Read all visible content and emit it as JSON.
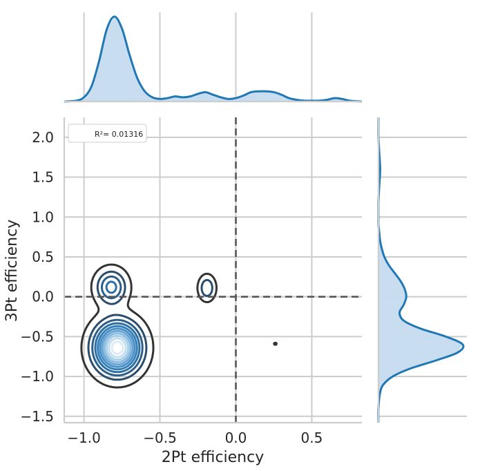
{
  "chart_data": {
    "type": "scatter",
    "subtype": "jointplot-kde",
    "xlabel": "2Pt efficiency",
    "ylabel": "3Pt efficiency",
    "xlim": [
      -1.13,
      0.83
    ],
    "ylim": [
      -1.58,
      2.25
    ],
    "xticks": [
      "−1.0",
      "−0.5",
      "0.0",
      "0.5"
    ],
    "xtick_values": [
      -1.0,
      -0.5,
      0.0,
      0.5
    ],
    "yticks": [
      "−1.5",
      "−1.0",
      "−0.5",
      "0.0",
      "0.5",
      "1.0",
      "1.5",
      "2.0"
    ],
    "ytick_values": [
      -1.5,
      -1.0,
      -0.5,
      0.0,
      0.5,
      1.0,
      1.5,
      2.0
    ],
    "grid": true,
    "legend": {
      "placement": "top-left",
      "entries": [
        "R²= 0.01316"
      ]
    },
    "reference_lines": {
      "x": 0.0,
      "y": 0.0,
      "style": "dashed"
    },
    "colors": {
      "marginal": "#1f77b4",
      "marginal_fill": "#c6dbef",
      "contour_outer": "#333333",
      "contour_inner": "#deebf7",
      "refline": "#555555"
    },
    "joint_kde": {
      "components": [
        {
          "cx": -0.78,
          "cy": -0.64,
          "sx": 0.095,
          "sy": 0.2,
          "w": 1.0
        },
        {
          "cx": -0.82,
          "cy": 0.12,
          "sx": 0.065,
          "sy": 0.14,
          "w": 0.35
        },
        {
          "cx": -0.19,
          "cy": 0.11,
          "sx": 0.035,
          "sy": 0.1,
          "w": 0.22
        },
        {
          "cx": 0.26,
          "cy": -0.59,
          "sx": 0.02,
          "sy": 0.03,
          "w": 0.05
        }
      ],
      "contour_levels": 11
    },
    "marginal_x": {
      "x": [
        -1.13,
        -1.05,
        -1.0,
        -0.95,
        -0.9,
        -0.85,
        -0.8,
        -0.75,
        -0.7,
        -0.65,
        -0.6,
        -0.55,
        -0.5,
        -0.45,
        -0.4,
        -0.35,
        -0.3,
        -0.25,
        -0.2,
        -0.15,
        -0.1,
        -0.05,
        0.0,
        0.05,
        0.1,
        0.15,
        0.2,
        0.25,
        0.3,
        0.35,
        0.4,
        0.45,
        0.5,
        0.55,
        0.6,
        0.65,
        0.7,
        0.75,
        0.83
      ],
      "density": [
        0.0,
        0.01,
        0.05,
        0.18,
        0.48,
        0.85,
        1.0,
        0.86,
        0.55,
        0.28,
        0.12,
        0.05,
        0.03,
        0.04,
        0.06,
        0.05,
        0.06,
        0.09,
        0.11,
        0.08,
        0.05,
        0.03,
        0.04,
        0.07,
        0.11,
        0.12,
        0.12,
        0.11,
        0.08,
        0.04,
        0.02,
        0.01,
        0.01,
        0.01,
        0.02,
        0.04,
        0.03,
        0.01,
        0.0
      ]
    },
    "marginal_y": {
      "y": [
        -1.58,
        -1.4,
        -1.2,
        -1.1,
        -1.0,
        -0.9,
        -0.8,
        -0.7,
        -0.6,
        -0.5,
        -0.4,
        -0.3,
        -0.2,
        -0.1,
        0.0,
        0.1,
        0.2,
        0.3,
        0.4,
        0.5,
        0.6,
        0.7,
        0.8,
        0.9,
        1.0,
        1.2,
        1.4,
        1.6,
        1.8,
        2.0,
        2.25
      ],
      "density": [
        0.0,
        0.0,
        0.02,
        0.06,
        0.17,
        0.38,
        0.68,
        0.94,
        1.0,
        0.8,
        0.5,
        0.3,
        0.25,
        0.3,
        0.33,
        0.31,
        0.26,
        0.19,
        0.12,
        0.07,
        0.04,
        0.02,
        0.01,
        0.0,
        0.0,
        0.0,
        0.01,
        0.02,
        0.01,
        0.0,
        0.0
      ]
    }
  }
}
